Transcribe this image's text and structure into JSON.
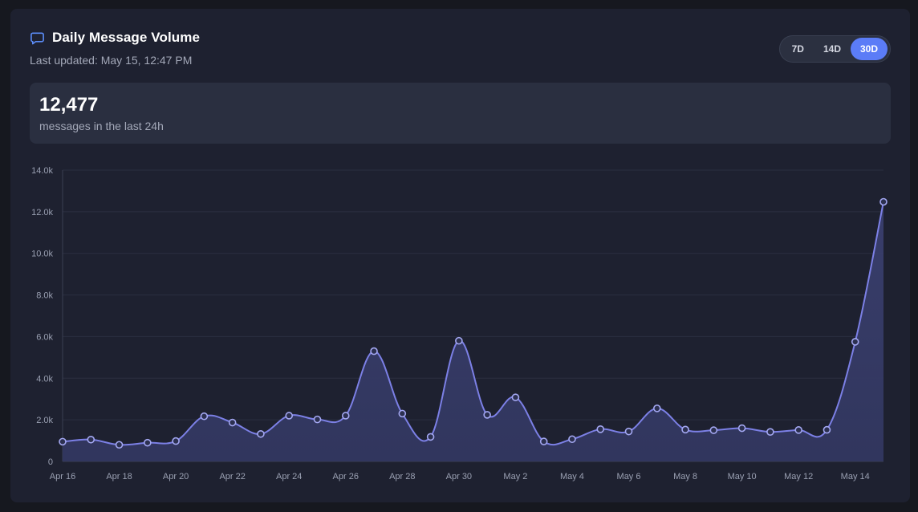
{
  "header": {
    "title": "Daily Message Volume",
    "last_updated": "Last updated: May 15, 12:47 PM",
    "icon": "chat-bubble-icon"
  },
  "range_toggle": {
    "options": [
      "7D",
      "14D",
      "30D"
    ],
    "selected": "30D"
  },
  "summary": {
    "value": "12,477",
    "label": "messages in the last 24h"
  },
  "colors": {
    "accent": "#5b7cf7",
    "line": "#7c80e6",
    "area": "#353a64"
  },
  "chart_data": {
    "type": "area",
    "title": "",
    "xlabel": "",
    "ylabel": "",
    "ylim": [
      0,
      14000
    ],
    "y_ticks": [
      0,
      2000,
      4000,
      6000,
      8000,
      10000,
      12000,
      14000
    ],
    "y_tick_labels": [
      "0",
      "2.0k",
      "4.0k",
      "6.0k",
      "8.0k",
      "10.0k",
      "12.0k",
      "14.0k"
    ],
    "x_tick_labels": [
      "Apr 16",
      "Apr 18",
      "Apr 20",
      "Apr 22",
      "Apr 24",
      "Apr 26",
      "Apr 28",
      "Apr 30",
      "May 2",
      "May 4",
      "May 6",
      "May 8",
      "May 10",
      "May 12",
      "May 14"
    ],
    "grid": true,
    "categories": [
      "Apr 16",
      "Apr 17",
      "Apr 18",
      "Apr 19",
      "Apr 20",
      "Apr 21",
      "Apr 22",
      "Apr 23",
      "Apr 24",
      "Apr 25",
      "Apr 26",
      "Apr 27",
      "Apr 28",
      "Apr 29",
      "Apr 30",
      "May 1",
      "May 2",
      "May 3",
      "May 4",
      "May 5",
      "May 6",
      "May 7",
      "May 8",
      "May 9",
      "May 10",
      "May 11",
      "May 12",
      "May 13",
      "May 14",
      "May 15"
    ],
    "values": [
      950,
      1050,
      800,
      900,
      980,
      2170,
      1870,
      1320,
      2200,
      2020,
      2200,
      5300,
      2300,
      1180,
      5800,
      2240,
      3080,
      960,
      1070,
      1550,
      1440,
      2550,
      1530,
      1500,
      1600,
      1420,
      1510,
      1520,
      5750,
      12477
    ]
  }
}
